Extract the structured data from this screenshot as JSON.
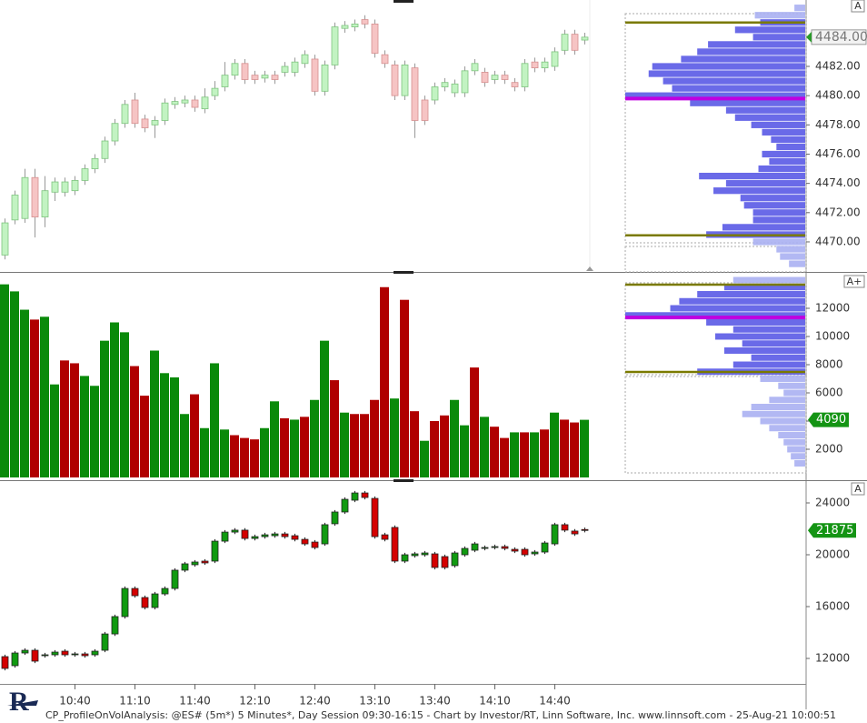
{
  "chart_data": [
    {
      "type": "candlestick",
      "button": "A",
      "up_color": "#c2f3c2",
      "down_color": "#f6c4c4",
      "open": [
        4469.1,
        4471.5,
        4471.6,
        4474.4,
        4471.7,
        4473.4,
        4473.4,
        4473.5,
        4474.2,
        4475.0,
        4475.7,
        4476.9,
        4478.1,
        4479.7,
        4478.4,
        4478.0,
        4478.3,
        4479.4,
        4479.5,
        4479.7,
        4479.1,
        4480.0,
        4480.6,
        4481.4,
        4482.2,
        4481.4,
        4481.2,
        4481.4,
        4481.6,
        4481.6,
        4482.2,
        4482.5,
        4480.3,
        4482.1,
        4484.6,
        4484.7,
        4485.2,
        4484.9,
        4482.8,
        4482.1,
        4480.0,
        4481.9,
        4479.7,
        4479.7,
        4480.6,
        4480.2,
        4480.2,
        4481.7,
        4481.6,
        4481.1,
        4481.4,
        4480.9,
        4480.6,
        4482.3,
        4481.9,
        4482.0,
        4483.1,
        4484.2,
        4483.8
      ],
      "high": [
        4471.6,
        4473.5,
        4475.0,
        4475.0,
        4474.5,
        4474.4,
        4474.4,
        4474.5,
        4475.3,
        4476.0,
        4477.2,
        4478.4,
        4479.7,
        4480.2,
        4478.7,
        4478.6,
        4479.8,
        4479.9,
        4480.0,
        4480.0,
        4480.5,
        4481.0,
        4482.3,
        4482.5,
        4482.5,
        4481.7,
        4481.7,
        4481.7,
        4482.3,
        4482.6,
        4483.1,
        4482.8,
        4482.4,
        4485.0,
        4485.1,
        4485.2,
        4485.5,
        4485.2,
        4483.1,
        4482.4,
        4482.4,
        4482.2,
        4480.0,
        4480.9,
        4481.2,
        4481.1,
        4482.0,
        4482.5,
        4481.9,
        4481.7,
        4481.7,
        4481.2,
        4482.5,
        4482.6,
        4482.6,
        4483.3,
        4484.5,
        4484.5,
        4484.3
      ],
      "low": [
        4468.8,
        4471.2,
        4471.3,
        4470.3,
        4471.0,
        4472.8,
        4473.1,
        4473.2,
        4473.9,
        4474.7,
        4475.4,
        4476.6,
        4477.8,
        4477.8,
        4477.5,
        4477.1,
        4478.0,
        4479.1,
        4479.2,
        4478.9,
        4478.8,
        4479.7,
        4480.3,
        4481.1,
        4480.8,
        4480.8,
        4480.9,
        4480.8,
        4481.3,
        4481.3,
        4481.9,
        4480.0,
        4480.0,
        4481.8,
        4484.3,
        4484.4,
        4484.6,
        4482.6,
        4481.9,
        4479.7,
        4479.7,
        4477.1,
        4478.0,
        4479.4,
        4480.3,
        4479.9,
        4479.9,
        4481.4,
        4480.6,
        4480.8,
        4480.8,
        4480.3,
        4480.3,
        4481.6,
        4481.6,
        4481.7,
        4482.8,
        4482.8,
        4483.5
      ],
      "close": [
        4471.3,
        4473.2,
        4474.4,
        4471.7,
        4473.5,
        4474.1,
        4474.1,
        4474.2,
        4475.0,
        4475.7,
        4476.9,
        4478.1,
        4479.4,
        4478.1,
        4477.8,
        4478.3,
        4479.5,
        4479.6,
        4479.7,
        4479.2,
        4479.9,
        4480.5,
        4481.4,
        4482.2,
        4481.1,
        4481.1,
        4481.4,
        4481.1,
        4482.0,
        4482.3,
        4482.8,
        4480.3,
        4482.1,
        4484.7,
        4484.8,
        4484.9,
        4484.9,
        4482.9,
        4482.2,
        4480.0,
        4482.1,
        4478.3,
        4478.3,
        4480.6,
        4480.9,
        4480.8,
        4481.7,
        4482.2,
        4480.9,
        4481.4,
        4481.1,
        4480.6,
        4482.2,
        4481.9,
        4482.3,
        4483.0,
        4484.2,
        4483.1,
        4484.0
      ],
      "ylim": [
        4468.07,
        4486.54
      ],
      "yticks": [
        {
          "value": 4470,
          "label": "4470.00"
        },
        {
          "value": 4472,
          "label": "4472.00"
        },
        {
          "value": 4474,
          "label": "4474.00"
        },
        {
          "value": 4476,
          "label": "4476.00"
        },
        {
          "value": 4478,
          "label": "4478.00"
        },
        {
          "value": 4480,
          "label": "4480.00"
        },
        {
          "value": 4482,
          "label": "4482.00"
        }
      ],
      "last_value": {
        "value": 4484,
        "label": "4484.00"
      },
      "profile": {
        "levels": [
          4486.0,
          4485.5,
          4485.0,
          4484.5,
          4484.0,
          4483.5,
          4483.0,
          4482.5,
          4482.0,
          4481.5,
          4481.0,
          4480.5,
          4480.0,
          4479.5,
          4479.0,
          4478.5,
          4478.0,
          4477.5,
          4477.0,
          4476.5,
          4476.0,
          4475.5,
          4475.0,
          4474.5,
          4474.0,
          4473.5,
          4473.0,
          4472.5,
          4472.0,
          4471.5,
          4471.0,
          4470.5,
          4470.0,
          4469.5,
          4469.0,
          4468.5
        ],
        "values": [
          6,
          28,
          25,
          39,
          29,
          54,
          60,
          69,
          85,
          87,
          79,
          74,
          100,
          64,
          44,
          39,
          30,
          24,
          19,
          16,
          24,
          20,
          26,
          59,
          44,
          51,
          36,
          34,
          29,
          29,
          46,
          55,
          29,
          16,
          14,
          9
        ],
        "xlim": [
          0,
          100
        ],
        "poc": 4479.8,
        "vah": 4485.0,
        "val": 4470.45
      }
    },
    {
      "type": "bar",
      "button": "A+",
      "values": [
        13700,
        13200,
        11900,
        11200,
        11400,
        6600,
        8300,
        8100,
        7200,
        6500,
        9700,
        11000,
        10300,
        7900,
        5800,
        9000,
        7400,
        7100,
        4500,
        5900,
        3500,
        8100,
        3400,
        3000,
        2800,
        2700,
        3500,
        5400,
        4200,
        4100,
        4300,
        5500,
        9700,
        6900,
        4600,
        4500,
        4500,
        5500,
        13500,
        5600,
        12600,
        4700,
        2600,
        4000,
        4400,
        5500,
        3700,
        7800,
        4300,
        3600,
        2800,
        3200,
        3200,
        3200,
        3400,
        4600,
        4100,
        3900,
        4090
      ],
      "colors": [
        "#0a8a0a",
        "#0a8a0a",
        "#0a8a0a",
        "#b00000",
        "#0a8a0a",
        "#0a8a0a",
        "#b00000",
        "#b00000",
        "#0a8a0a",
        "#0a8a0a",
        "#0a8a0a",
        "#0a8a0a",
        "#0a8a0a",
        "#b00000",
        "#b00000",
        "#0a8a0a",
        "#0a8a0a",
        "#0a8a0a",
        "#0a8a0a",
        "#b00000",
        "#0a8a0a",
        "#0a8a0a",
        "#0a8a0a",
        "#b00000",
        "#b00000",
        "#b00000",
        "#0a8a0a",
        "#0a8a0a",
        "#b00000",
        "#0a8a0a",
        "#b00000",
        "#0a8a0a",
        "#0a8a0a",
        "#b00000",
        "#0a8a0a",
        "#b00000",
        "#b00000",
        "#b00000",
        "#b00000",
        "#0a8a0a",
        "#b00000",
        "#b00000",
        "#0a8a0a",
        "#b00000",
        "#b00000",
        "#0a8a0a",
        "#0a8a0a",
        "#b00000",
        "#0a8a0a",
        "#b00000",
        "#b00000",
        "#0a8a0a",
        "#b00000",
        "#0a8a0a",
        "#b00000",
        "#0a8a0a",
        "#b00000",
        "#b00000",
        "#0a8a0a"
      ],
      "ylim": [
        -129,
        14387
      ],
      "yticks": [
        2000,
        4000,
        6000,
        8000,
        10000,
        12000
      ],
      "last_value": 4090,
      "profile": {
        "levels": [
          14000,
          13500,
          13000,
          12500,
          12000,
          11500,
          11000,
          10500,
          10000,
          9500,
          9000,
          8500,
          8000,
          7500,
          7000,
          6500,
          6000,
          5500,
          5000,
          4500,
          4000,
          3500,
          3000,
          2500,
          2000,
          1500,
          1000
        ],
        "values": [
          40,
          45,
          60,
          70,
          75,
          100,
          55,
          40,
          50,
          35,
          45,
          30,
          40,
          60,
          25,
          15,
          12,
          20,
          30,
          35,
          25,
          20,
          15,
          12,
          10,
          8,
          6
        ],
        "xlim": [
          0,
          100
        ],
        "poc": 11350,
        "vah": 13680,
        "val": 7480
      }
    },
    {
      "type": "candlestick",
      "button": "A",
      "up_color": "#109a10",
      "down_color": "#d40000",
      "categories": [
        null,
        null,
        null,
        null,
        null,
        null,
        null,
        "10:40",
        null,
        null,
        null,
        null,
        null,
        "11:10",
        null,
        null,
        null,
        null,
        null,
        "11:40",
        null,
        null,
        null,
        null,
        null,
        "12:10",
        null,
        null,
        null,
        null,
        null,
        "12:40",
        null,
        null,
        null,
        null,
        null,
        "13:10",
        null,
        null,
        null,
        null,
        null,
        "13:40",
        null,
        null,
        null,
        null,
        null,
        "14:10",
        null,
        null,
        null,
        null,
        null,
        "14:40",
        null,
        null,
        null
      ],
      "open": [
        12140,
        11440,
        12420,
        12630,
        12210,
        12280,
        12560,
        12280,
        12350,
        12280,
        12630,
        13890,
        15230,
        17400,
        16700,
        15930,
        16980,
        17400,
        18810,
        19230,
        19510,
        19510,
        21050,
        21750,
        21900,
        21260,
        21400,
        21470,
        21610,
        21470,
        21190,
        20980,
        20840,
        22390,
        23300,
        24210,
        24770,
        24350,
        21540,
        22110,
        19510,
        19930,
        20000,
        20070,
        19860,
        19160,
        20000,
        20350,
        20490,
        20560,
        20630,
        20420,
        20420,
        20070,
        20210,
        20840,
        22320,
        21830,
        21950
      ],
      "high": [
        12290,
        12570,
        12780,
        12780,
        12430,
        12640,
        12710,
        12500,
        12500,
        12710,
        14040,
        15380,
        17550,
        17550,
        16850,
        17130,
        17550,
        18960,
        19450,
        19590,
        19660,
        21200,
        21900,
        22050,
        22050,
        21550,
        21690,
        21760,
        21760,
        21620,
        21340,
        21130,
        22470,
        23450,
        24430,
        24920,
        24920,
        24500,
        21690,
        22260,
        20150,
        20220,
        20290,
        20220,
        20010,
        20290,
        20640,
        20990,
        20710,
        20780,
        20780,
        20570,
        20570,
        20360,
        21060,
        22470,
        22470,
        21980,
        22100
      ],
      "low": [
        11080,
        11290,
        12270,
        11640,
        12060,
        12130,
        12130,
        12130,
        12060,
        12130,
        12480,
        13740,
        15080,
        16690,
        15780,
        15780,
        16830,
        17250,
        18660,
        19080,
        19220,
        19360,
        20900,
        21600,
        21110,
        21110,
        21250,
        21320,
        21250,
        21040,
        20690,
        20410,
        20690,
        22240,
        23150,
        24060,
        24270,
        21250,
        21040,
        19360,
        19360,
        19780,
        19850,
        18870,
        18870,
        19010,
        19850,
        20200,
        20340,
        20410,
        20340,
        20130,
        19850,
        19920,
        20060,
        20690,
        21750,
        21460,
        21725
      ],
      "close": [
        11230,
        12420,
        12630,
        11790,
        12280,
        12490,
        12280,
        12350,
        12210,
        12560,
        13890,
        15230,
        17400,
        16840,
        15930,
        16980,
        17400,
        18810,
        19300,
        19440,
        19370,
        21050,
        21750,
        21900,
        21260,
        21400,
        21540,
        21610,
        21400,
        21190,
        20840,
        20560,
        22320,
        23300,
        24280,
        24770,
        24420,
        21400,
        21190,
        19510,
        20000,
        20070,
        20140,
        19020,
        19020,
        20140,
        20490,
        20840,
        20560,
        20630,
        20490,
        20280,
        20000,
        20210,
        20910,
        22320,
        21900,
        21610,
        21875
      ],
      "ylim": [
        10035,
        25615
      ],
      "yticks": [
        12000,
        16000,
        20000,
        24000
      ],
      "last_value": 21875
    }
  ],
  "footer": "CP_ProfileOnVolAnalysis: @ES# (5m*) 5 Minutes*, Day Session 09:30-16:15 - Chart by Investor/RT, Linn Software, Inc. www.linnsoft.com - 25-Aug-21 10:00:51"
}
